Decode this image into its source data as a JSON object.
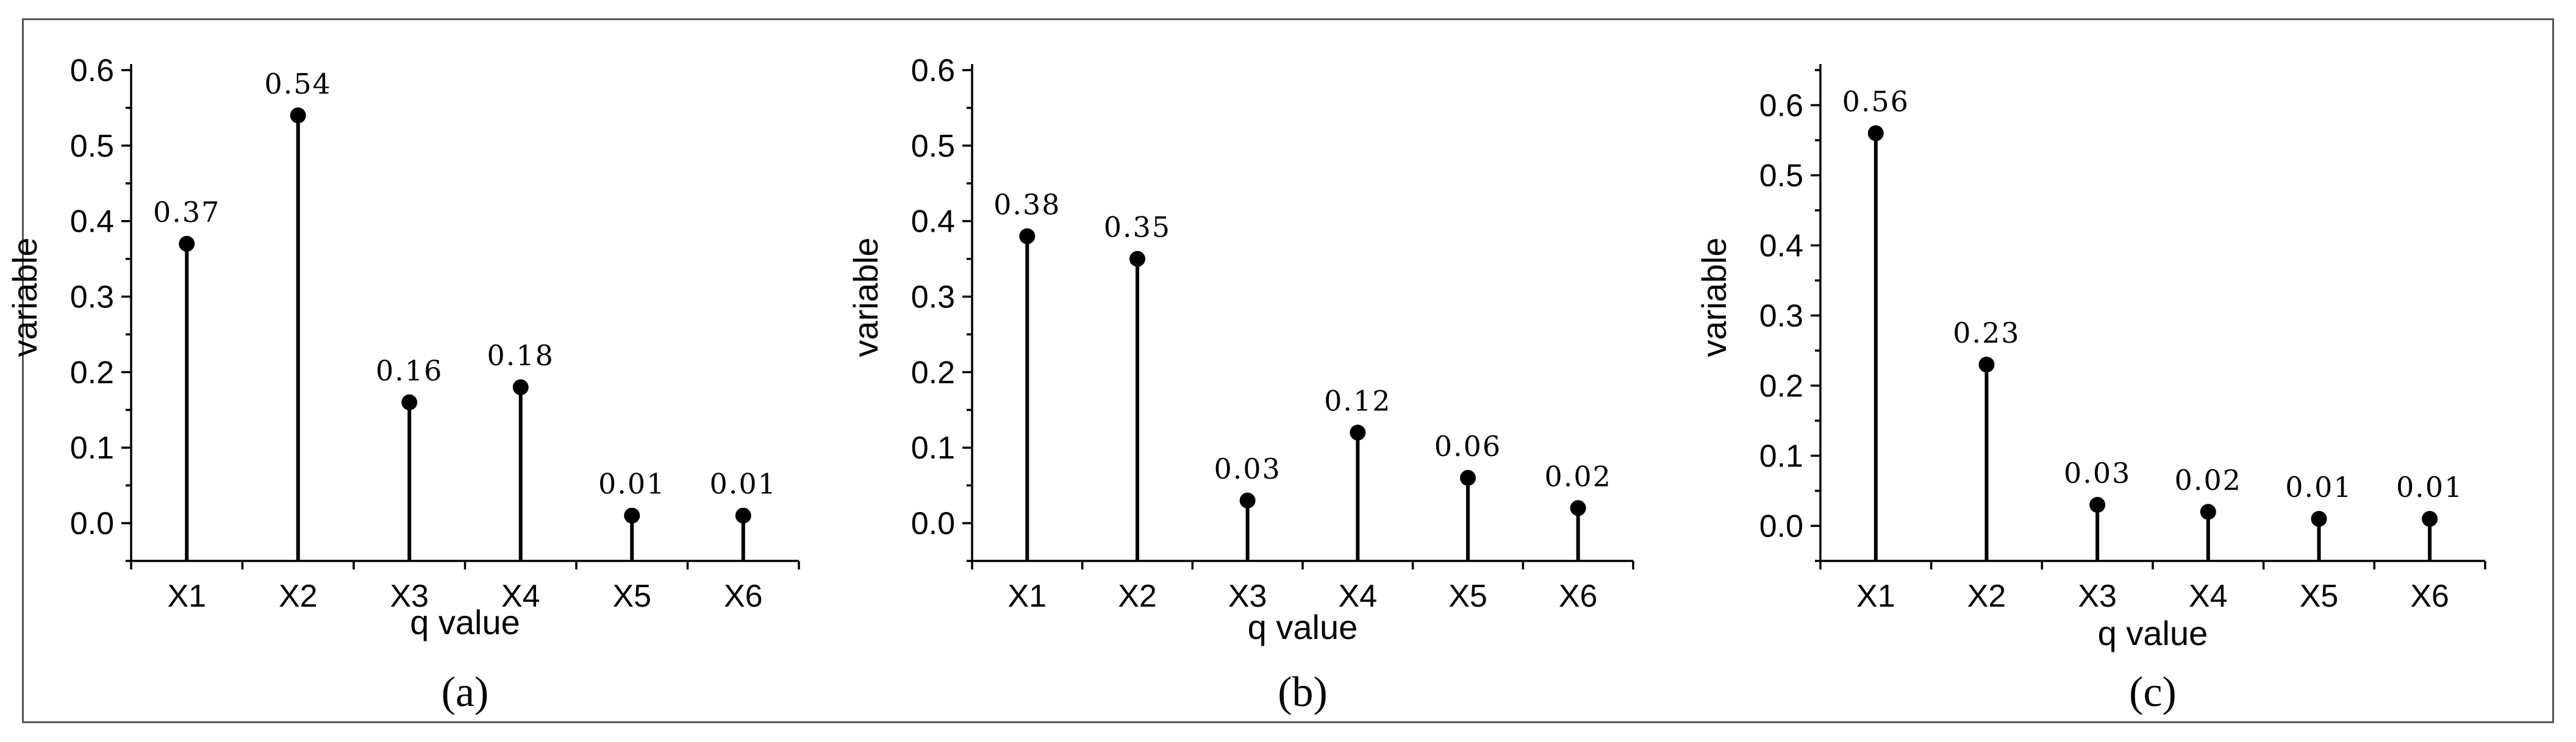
{
  "chart_data": [
    {
      "type": "stem",
      "caption": "(a)",
      "xlabel": "q value",
      "ylabel": "variable",
      "categories": [
        "X1",
        "X2",
        "X3",
        "X4",
        "X5",
        "X6"
      ],
      "values": [
        0.37,
        0.54,
        0.16,
        0.18,
        0.01,
        0.01
      ],
      "data_labels": [
        "0.37",
        "0.54",
        "0.16",
        "0.18",
        "0.01",
        "0.01"
      ],
      "ylim": [
        -0.05,
        0.6
      ],
      "yticks": [
        "0.0",
        "0.1",
        "0.2",
        "0.3",
        "0.4",
        "0.5",
        "0.6"
      ],
      "ytick_values": [
        0,
        0.1,
        0.2,
        0.3,
        0.4,
        0.5,
        0.6
      ],
      "grid": false,
      "legend": "none"
    },
    {
      "type": "stem",
      "caption": "(b)",
      "xlabel": "q value",
      "ylabel": "variable",
      "categories": [
        "X1",
        "X2",
        "X3",
        "X4",
        "X5",
        "X6"
      ],
      "values": [
        0.38,
        0.35,
        0.03,
        0.12,
        0.06,
        0.02
      ],
      "data_labels": [
        "0.38",
        "0.35",
        "0.03",
        "0.12",
        "0.06",
        "0.02"
      ],
      "ylim": [
        -0.05,
        0.6
      ],
      "yticks": [
        "0.0",
        "0.1",
        "0.2",
        "0.3",
        "0.4",
        "0.5",
        "0.6"
      ],
      "ytick_values": [
        0,
        0.1,
        0.2,
        0.3,
        0.4,
        0.5,
        0.6
      ],
      "grid": false,
      "legend": "none"
    },
    {
      "type": "stem",
      "caption": "(c)",
      "xlabel": "q value",
      "ylabel": "variable",
      "categories": [
        "X1",
        "X2",
        "X3",
        "X4",
        "X5",
        "X6"
      ],
      "values": [
        0.56,
        0.23,
        0.03,
        0.02,
        0.01,
        0.01
      ],
      "data_labels": [
        "0.56",
        "0.23",
        "0.03",
        "0.02",
        "0.01",
        "0.01"
      ],
      "ylim": [
        -0.05,
        0.65
      ],
      "yticks": [
        "0.0",
        "0.1",
        "0.2",
        "0.3",
        "0.4",
        "0.5",
        "0.6"
      ],
      "ytick_values": [
        0,
        0.1,
        0.2,
        0.3,
        0.4,
        0.5,
        0.6
      ],
      "grid": false,
      "legend": "none"
    }
  ]
}
